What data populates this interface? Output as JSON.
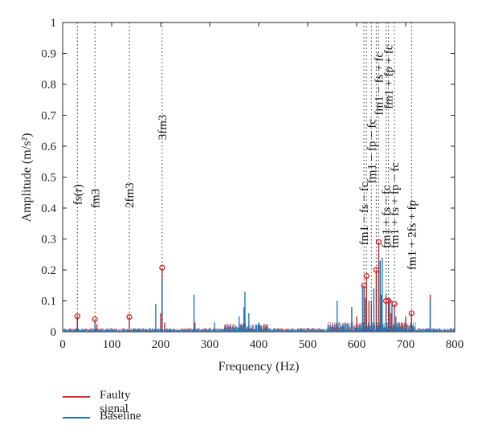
{
  "chart_data": {
    "type": "line",
    "title": "",
    "xlabel": "Frequency (Hz)",
    "ylabel": "Amplitude (m/s²)",
    "xlim": [
      0,
      800
    ],
    "ylim": [
      0,
      1
    ],
    "xticks": [
      "0",
      "100",
      "200",
      "300",
      "400",
      "500",
      "600",
      "700",
      "800"
    ],
    "yticks": [
      "0",
      "0.1",
      "0.2",
      "0.3",
      "0.4",
      "0.5",
      "0.6",
      "0.7",
      "0.8",
      "0.9",
      "1"
    ],
    "grid": false,
    "legend_position": "bottom-left",
    "series": [
      {
        "name": "Faulty signal",
        "color": "#d62728",
        "peaks": [
          [
            30,
            0.05
          ],
          [
            66,
            0.04
          ],
          [
            70,
            0.025
          ],
          [
            136,
            0.048
          ],
          [
            200,
            0.06
          ],
          [
            203,
            0.207
          ],
          [
            208,
            0.03
          ],
          [
            270,
            0.03
          ],
          [
            370,
            0.05
          ],
          [
            560,
            0.03
          ],
          [
            600,
            0.05
          ],
          [
            615,
            0.15
          ],
          [
            620,
            0.18
          ],
          [
            625,
            0.1
          ],
          [
            640,
            0.2
          ],
          [
            645,
            0.29
          ],
          [
            650,
            0.12
          ],
          [
            660,
            0.1
          ],
          [
            665,
            0.1
          ],
          [
            670,
            0.06
          ],
          [
            677,
            0.09
          ],
          [
            700,
            0.05
          ],
          [
            712,
            0.06
          ],
          [
            750,
            0.12
          ]
        ]
      },
      {
        "name": "Baseline",
        "color": "#1f77b4",
        "peaks": [
          [
            66,
            0.03
          ],
          [
            190,
            0.09
          ],
          [
            203,
            0.17
          ],
          [
            268,
            0.12
          ],
          [
            310,
            0.03
          ],
          [
            360,
            0.05
          ],
          [
            370,
            0.08
          ],
          [
            372,
            0.13
          ],
          [
            380,
            0.06
          ],
          [
            400,
            0.03
          ],
          [
            560,
            0.1
          ],
          [
            590,
            0.08
          ],
          [
            612,
            0.15
          ],
          [
            618,
            0.11
          ],
          [
            630,
            0.1
          ],
          [
            635,
            0.14
          ],
          [
            648,
            0.23
          ],
          [
            652,
            0.24
          ],
          [
            660,
            0.12
          ],
          [
            667,
            0.11
          ],
          [
            672,
            0.1
          ],
          [
            680,
            0.05
          ],
          [
            700,
            0.04
          ],
          [
            750,
            0.1
          ]
        ]
      }
    ],
    "markers": [
      {
        "x": 30,
        "y": 0.05
      },
      {
        "x": 66,
        "y": 0.04
      },
      {
        "x": 136,
        "y": 0.048
      },
      {
        "x": 203,
        "y": 0.207
      },
      {
        "x": 615,
        "y": 0.15
      },
      {
        "x": 620,
        "y": 0.18
      },
      {
        "x": 640,
        "y": 0.2
      },
      {
        "x": 645,
        "y": 0.29
      },
      {
        "x": 660,
        "y": 0.1
      },
      {
        "x": 665,
        "y": 0.1
      },
      {
        "x": 677,
        "y": 0.09
      },
      {
        "x": 712,
        "y": 0.06
      }
    ],
    "vlines": [
      30,
      66,
      136,
      203,
      615,
      620,
      630,
      640,
      645,
      660,
      665,
      677,
      712
    ],
    "annotations": [
      {
        "x": 30,
        "y": 0.41,
        "text": "fs(r)"
      },
      {
        "x": 66,
        "y": 0.4,
        "text": "fm3"
      },
      {
        "x": 136,
        "y": 0.4,
        "text": "2fm3"
      },
      {
        "x": 203,
        "y": 0.62,
        "text": "3fm3"
      },
      {
        "x": 615,
        "y": 0.28,
        "text": "fm1 − fs − fc"
      },
      {
        "x": 630,
        "y": 0.48,
        "text": "fm1 − fp − fc"
      },
      {
        "x": 645,
        "y": 0.7,
        "text": "fm1 − fs + fc"
      },
      {
        "x": 660,
        "y": 0.27,
        "text": "fm1 + fs − fc"
      },
      {
        "x": 665,
        "y": 0.72,
        "text": "fm1 + fp + fc"
      },
      {
        "x": 677,
        "y": 0.27,
        "text": "fm1 + fs + fp − fc"
      },
      {
        "x": 712,
        "y": 0.2,
        "text": "fm1 + 2fs + fp"
      }
    ]
  },
  "legend": {
    "faulty_label": "Faulty signal",
    "baseline_label": "Baseline"
  }
}
